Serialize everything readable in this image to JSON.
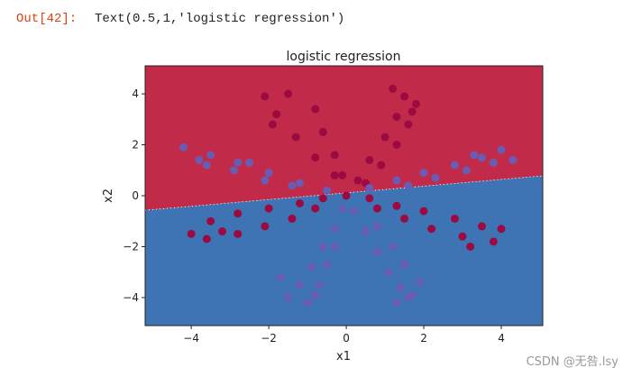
{
  "prompt": "Out[42]:",
  "output_text": "Text(0.5,1,'logistic regression')",
  "watermark": "CSDN @无咎.lsy",
  "chart_data": {
    "type": "scatter",
    "title": "logistic regression",
    "xlabel": "x1",
    "ylabel": "x2",
    "xlim": [
      -5.19,
      5.07
    ],
    "ylim": [
      -5.1,
      5.1
    ],
    "xticks": [
      {
        "value": -4,
        "label": "−4"
      },
      {
        "value": -2,
        "label": "−2"
      },
      0,
      2,
      4
    ],
    "yticks": [
      {
        "value": -4,
        "label": "−4"
      },
      {
        "value": -2,
        "label": "−2"
      },
      0,
      2,
      4
    ],
    "boundary": {
      "x": [
        -5.19,
        5.07
      ],
      "y": [
        -0.57,
        0.78
      ]
    },
    "regions": {
      "above": "#c22a49",
      "below": "#3f74b4"
    },
    "series": [
      {
        "color": "#9c0a42",
        "x": [
          0,
          -0.3,
          -0.8,
          -1.3,
          -1.8,
          -2.1,
          -1.5,
          -0.8,
          -0.6,
          -0.3,
          -0.1,
          -1.9,
          0.3,
          0.6,
          1.0,
          1.3,
          1.5,
          1.8,
          1.6,
          1.3,
          0.9,
          0.5,
          1.2,
          1.7,
          0.6,
          1.3,
          2.0,
          2.8,
          3.5,
          4.0,
          3.8,
          3.0,
          2.2,
          1.5,
          0.8,
          3.2,
          -0.6,
          -1.2,
          -2.0,
          -2.8,
          -3.5,
          -4.0,
          -3.6,
          -2.8,
          -2.1,
          -1.4,
          -0.8,
          -3.2
        ],
        "y": [
          0,
          0.8,
          1.5,
          2.3,
          3.2,
          3.9,
          4.0,
          3.4,
          2.5,
          1.6,
          0.8,
          2.8,
          0.6,
          1.4,
          2.3,
          3.1,
          3.9,
          3.6,
          2.8,
          2.0,
          1.2,
          0.5,
          4.2,
          3.3,
          -0.1,
          -0.4,
          -0.6,
          -0.9,
          -1.2,
          -1.3,
          -1.8,
          -1.6,
          -1.3,
          -0.9,
          -0.5,
          -2.0,
          -0.1,
          -0.3,
          -0.5,
          -0.7,
          -1.0,
          -1.5,
          -1.7,
          -1.5,
          -1.2,
          -0.9,
          -0.5,
          -1.4
        ]
      },
      {
        "color": "#6a5cb2",
        "x": [
          -0.5,
          -1.2,
          -2.0,
          -2.8,
          -3.5,
          -4.2,
          -3.6,
          -2.9,
          -2.1,
          -1.4,
          -3.8,
          -2.5,
          0.6,
          1.3,
          2.0,
          2.8,
          3.5,
          4.0,
          3.8,
          3.1,
          2.3,
          1.6,
          3.3,
          4.3,
          -0.1,
          -0.3,
          -0.6,
          -0.9,
          -1.2,
          -1.5,
          -1.0,
          -0.7,
          -0.5,
          -0.3,
          -1.7,
          -0.8,
          0.2,
          0.5,
          0.8,
          1.1,
          1.4,
          1.6,
          1.9,
          1.5,
          1.2,
          0.8,
          1.7,
          1.3
        ],
        "y": [
          0.2,
          0.5,
          0.9,
          1.3,
          1.6,
          1.9,
          1.2,
          1.0,
          0.6,
          0.4,
          1.4,
          1.3,
          0.3,
          0.6,
          0.9,
          1.2,
          1.5,
          1.8,
          1.3,
          1.0,
          0.7,
          0.4,
          1.6,
          1.4,
          -0.5,
          -1.3,
          -2.0,
          -2.8,
          -3.5,
          -4.0,
          -4.2,
          -3.5,
          -2.7,
          -2.0,
          -3.2,
          -3.9,
          -0.6,
          -1.4,
          -2.2,
          -3.0,
          -3.6,
          -4.0,
          -3.4,
          -2.7,
          -2.0,
          -1.2,
          -3.9,
          -4.2
        ]
      }
    ]
  }
}
